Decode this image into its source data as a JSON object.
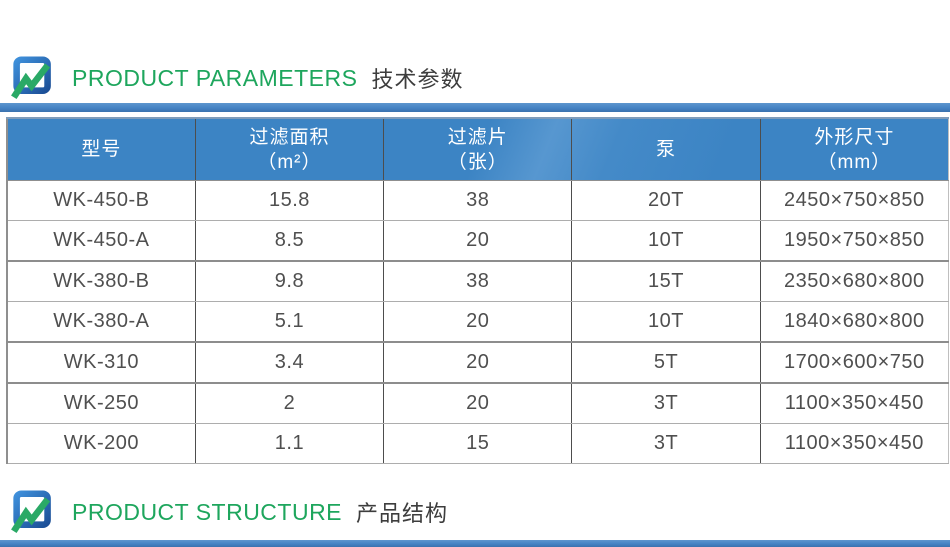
{
  "colors": {
    "accent_green": "#1ea65d",
    "bar_blue": "#4a86c8",
    "header_blue": "#3d85c5",
    "heading_zh_text": "#3d3d3d",
    "cell_text": "#4f4f4f"
  },
  "icons": {
    "brand_logo": "brand-logo-icon"
  },
  "sections": {
    "parameters": {
      "title_en": "PRODUCT PARAMETERS",
      "title_zh": "技术参数"
    },
    "structure": {
      "title_en": "PRODUCT STRUCTURE",
      "title_zh": "产品结构"
    }
  },
  "table": {
    "headers": [
      {
        "line1": "型号",
        "line2": ""
      },
      {
        "line1": "过滤面积",
        "line2": "（m²）"
      },
      {
        "line1": "过滤片",
        "line2": "（张）"
      },
      {
        "line1": "泵",
        "line2": ""
      },
      {
        "line1": "外形尺寸",
        "line2": "（mm）"
      }
    ],
    "columns": [
      "model",
      "filter-area",
      "filter-plates",
      "pump",
      "dimensions"
    ],
    "rows": [
      [
        "WK-450-B",
        "15.8",
        "38",
        "20T",
        "2450×750×850"
      ],
      [
        "WK-450-A",
        "8.5",
        "20",
        "10T",
        "1950×750×850"
      ],
      [
        "WK-380-B",
        "9.8",
        "38",
        "15T",
        "2350×680×800"
      ],
      [
        "WK-380-A",
        "5.1",
        "20",
        "10T",
        "1840×680×800"
      ],
      [
        "WK-310",
        "3.4",
        "20",
        "5T",
        "1700×600×750"
      ],
      [
        "WK-250",
        "2",
        "20",
        "3T",
        "1100×350×450"
      ],
      [
        "WK-200",
        "1.1",
        "15",
        "3T",
        "1100×350×450"
      ]
    ]
  }
}
